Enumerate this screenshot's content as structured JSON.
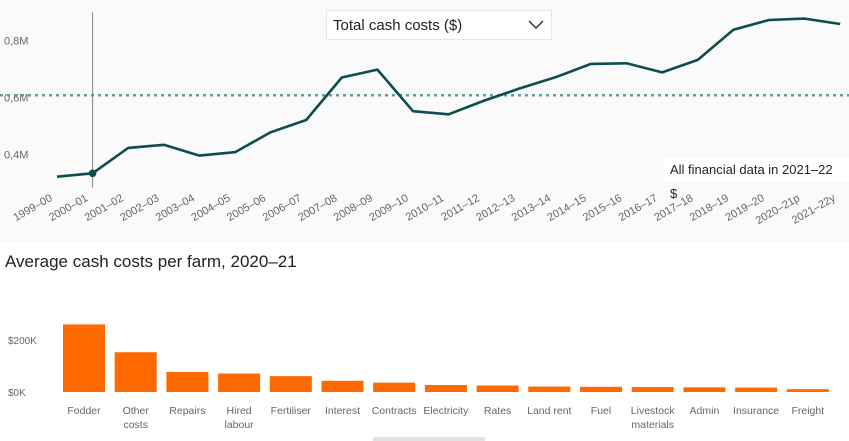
{
  "dropdown": {
    "label": "Total cash costs ($)"
  },
  "note": "All financial data in 2021–22 $",
  "bar_title": "Average cash costs per farm, 2020–21",
  "colors": {
    "line": "#0e4d4f",
    "reference": "#5e9ea0",
    "bar": "#ff6a00",
    "axis_text": "#666666",
    "grid": "#eeeeee"
  },
  "chart_data": [
    {
      "type": "line",
      "title": "Total cash costs ($)",
      "categories": [
        "1999–00",
        "2000–01",
        "2001–02",
        "2002–03",
        "2003–04",
        "2004–05",
        "2005–06",
        "2006–07",
        "2007–08",
        "2008–09",
        "2009–10",
        "2010–11",
        "2011–12",
        "2012–13",
        "2013–14",
        "2014–15",
        "2015–16",
        "2016–17",
        "2017–18",
        "2018–19",
        "2019–20",
        "2020–21p",
        "2021–22y"
      ],
      "values": [
        0.322,
        0.334,
        0.423,
        0.434,
        0.396,
        0.408,
        0.478,
        0.521,
        0.67,
        0.698,
        0.552,
        0.541,
        0.589,
        0.632,
        0.671,
        0.718,
        0.72,
        0.688,
        0.732,
        0.838,
        0.872,
        0.877,
        0.858
      ],
      "reference_value": 0.608,
      "highlighted_category": "2000–01",
      "yticks": [
        0.4,
        0.6,
        0.8
      ],
      "ytick_labels": [
        "0,4M",
        "0,6M",
        "0,8M"
      ],
      "ylim": [
        0.27,
        0.92
      ]
    },
    {
      "type": "bar",
      "title": "Average cash costs per farm, 2020–21",
      "categories": [
        "Fodder",
        "Other costs",
        "Repairs",
        "Hired labour",
        "Fertiliser",
        "Interest",
        "Contracts",
        "Electricity",
        "Rates",
        "Land rent",
        "Fuel",
        "Livestock materials",
        "Admin",
        "Insurance",
        "Freight"
      ],
      "labels": [
        [
          "Fodder"
        ],
        [
          "Other",
          "costs"
        ],
        [
          "Repairs"
        ],
        [
          "Hired",
          "labour"
        ],
        [
          "Fertiliser"
        ],
        [
          "Interest"
        ],
        [
          "Contracts"
        ],
        [
          "Electricity"
        ],
        [
          "Rates"
        ],
        [
          "Land rent"
        ],
        [
          "Fuel"
        ],
        [
          "Livestock",
          "materials"
        ],
        [
          "Admin"
        ],
        [
          "Insurance"
        ],
        [
          "Freight"
        ]
      ],
      "values": [
        260,
        153,
        77,
        71,
        61,
        43,
        36,
        27,
        25,
        21,
        20,
        19,
        18,
        17,
        11
      ],
      "unit": "$K",
      "yticks": [
        0,
        200
      ],
      "ytick_labels": [
        "$0K",
        "$200K"
      ],
      "ylim": [
        0,
        290
      ]
    }
  ]
}
